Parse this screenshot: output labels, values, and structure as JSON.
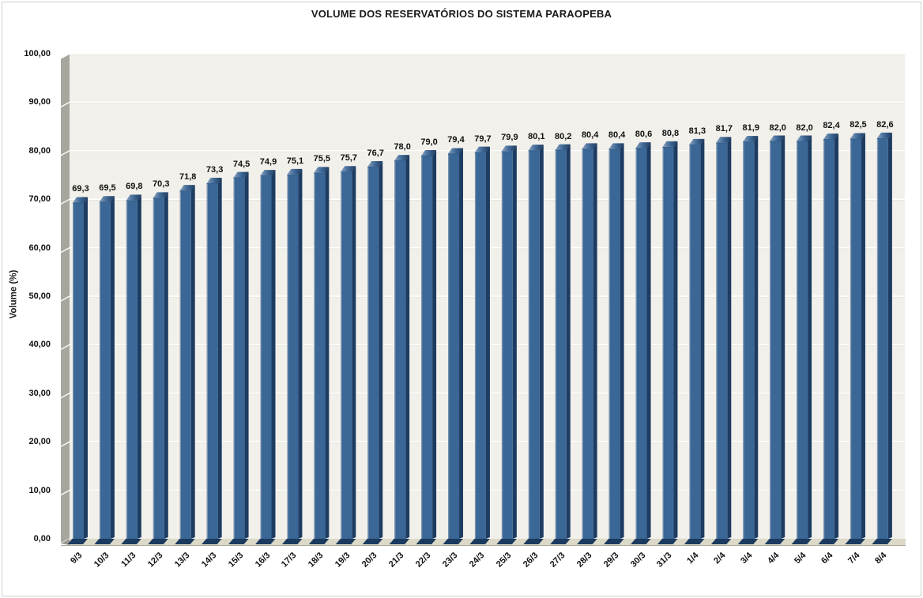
{
  "figure": {
    "background": "#ffffff",
    "border_color": "#d0cfcd"
  },
  "chart_data": {
    "type": "bar",
    "style": "3d-column",
    "title": "VOLUME DOS RESERVATÓRIOS DO SISTEMA PARAOPEBA",
    "xlabel": "",
    "ylabel": "Volume (%)",
    "ylim": [
      0,
      100
    ],
    "ytick_step": 10,
    "ytick_labels": [
      "0,00",
      "10,00",
      "20,00",
      "30,00",
      "40,00",
      "50,00",
      "60,00",
      "70,00",
      "80,00",
      "90,00",
      "100,00"
    ],
    "grid": true,
    "legend": false,
    "decimal_separator": ",",
    "colors": {
      "bar_front": "#3A6795",
      "bar_side": "#1E3C62",
      "bar_foot": "#1B3A5F",
      "bar_top_light": "#8BA2BE",
      "bar_top_mid": "#446D9A",
      "bar_top_dark": "#1C3A5E",
      "bar_left_highlight": "#8FA0B8",
      "plot_background": "#F1F0EA",
      "gridline": "#FFFFFF",
      "gridline_shade": "#E6E4DB",
      "wall": "#A7A69D",
      "wall_tick": "#FBFBF8",
      "floor": "#DCD9C8",
      "floor_edge": "#ABA89A",
      "floor_wedge": "#98968C"
    },
    "categories": [
      "9/3",
      "10/3",
      "11/3",
      "12/3",
      "13/3",
      "14/3",
      "15/3",
      "16/3",
      "17/3",
      "18/3",
      "19/3",
      "20/3",
      "21/3",
      "22/3",
      "23/3",
      "24/3",
      "25/3",
      "26/3",
      "27/3",
      "28/3",
      "29/3",
      "30/3",
      "31/3",
      "1/4",
      "2/4",
      "3/4",
      "4/4",
      "5/4",
      "6/4",
      "7/4",
      "8/4"
    ],
    "values": [
      69.3,
      69.5,
      69.8,
      70.3,
      71.8,
      73.3,
      74.5,
      74.9,
      75.1,
      75.5,
      75.7,
      76.7,
      78.0,
      79.0,
      79.4,
      79.7,
      79.9,
      80.1,
      80.2,
      80.4,
      80.4,
      80.6,
      80.8,
      81.3,
      81.7,
      81.9,
      82.0,
      82.0,
      82.4,
      82.5,
      82.6
    ],
    "data_labels": [
      "69,3",
      "69,5",
      "69,8",
      "70,3",
      "71,8",
      "73,3",
      "74,5",
      "74,9",
      "75,1",
      "75,5",
      "75,7",
      "76,7",
      "78,0",
      "79,0",
      "79,4",
      "79,7",
      "79,9",
      "80,1",
      "80,2",
      "80,4",
      "80,4",
      "80,6",
      "80,8",
      "81,3",
      "81,7",
      "81,9",
      "82,0",
      "82,0",
      "82,4",
      "82,5",
      "82,6"
    ]
  }
}
